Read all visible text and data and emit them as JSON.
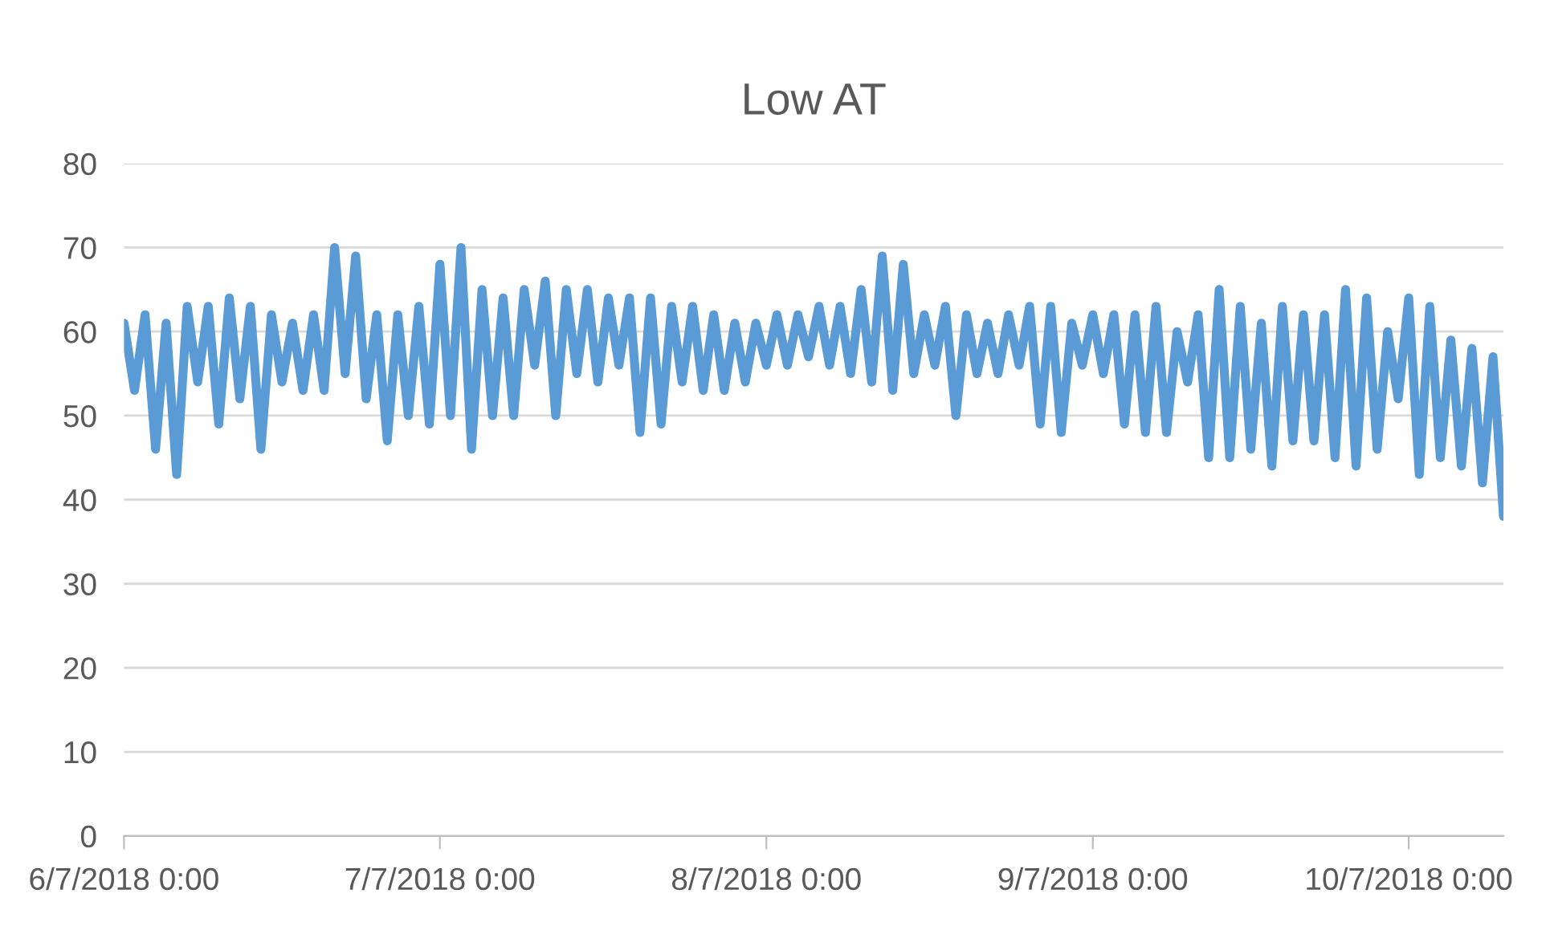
{
  "chart_data": {
    "type": "line",
    "title": "Low AT",
    "x": [
      "2018-06-07",
      "2018-06-08",
      "2018-06-09",
      "2018-06-10",
      "2018-06-11",
      "2018-06-12",
      "2018-06-13",
      "2018-06-14",
      "2018-06-15",
      "2018-06-16",
      "2018-06-17",
      "2018-06-18",
      "2018-06-19",
      "2018-06-20",
      "2018-06-21",
      "2018-06-22",
      "2018-06-23",
      "2018-06-24",
      "2018-06-25",
      "2018-06-26",
      "2018-06-27",
      "2018-06-28",
      "2018-06-29",
      "2018-06-30",
      "2018-07-01",
      "2018-07-02",
      "2018-07-03",
      "2018-07-04",
      "2018-07-05",
      "2018-07-06",
      "2018-07-07",
      "2018-07-08",
      "2018-07-09",
      "2018-07-10",
      "2018-07-11",
      "2018-07-12",
      "2018-07-13",
      "2018-07-14",
      "2018-07-15",
      "2018-07-16",
      "2018-07-17",
      "2018-07-18",
      "2018-07-19",
      "2018-07-20",
      "2018-07-21",
      "2018-07-22",
      "2018-07-23",
      "2018-07-24",
      "2018-07-25",
      "2018-07-26",
      "2018-07-27",
      "2018-07-28",
      "2018-07-29",
      "2018-07-30",
      "2018-07-31",
      "2018-08-01",
      "2018-08-02",
      "2018-08-03",
      "2018-08-04",
      "2018-08-05",
      "2018-08-06",
      "2018-08-07",
      "2018-08-08",
      "2018-08-09",
      "2018-08-10",
      "2018-08-11",
      "2018-08-12",
      "2018-08-13",
      "2018-08-14",
      "2018-08-15",
      "2018-08-16",
      "2018-08-17",
      "2018-08-18",
      "2018-08-19",
      "2018-08-20",
      "2018-08-21",
      "2018-08-22",
      "2018-08-23",
      "2018-08-24",
      "2018-08-25",
      "2018-08-26",
      "2018-08-27",
      "2018-08-28",
      "2018-08-29",
      "2018-08-30",
      "2018-08-31",
      "2018-09-01",
      "2018-09-02",
      "2018-09-03",
      "2018-09-04",
      "2018-09-05",
      "2018-09-06",
      "2018-09-07",
      "2018-09-08",
      "2018-09-09",
      "2018-09-10",
      "2018-09-11",
      "2018-09-12",
      "2018-09-13",
      "2018-09-14",
      "2018-09-15",
      "2018-09-16",
      "2018-09-17",
      "2018-09-18",
      "2018-09-19",
      "2018-09-20",
      "2018-09-21",
      "2018-09-22",
      "2018-09-23",
      "2018-09-24",
      "2018-09-25",
      "2018-09-26",
      "2018-09-27",
      "2018-09-28",
      "2018-09-29",
      "2018-09-30",
      "2018-10-01",
      "2018-10-02",
      "2018-10-03",
      "2018-10-04",
      "2018-10-05",
      "2018-10-06",
      "2018-10-07",
      "2018-10-08",
      "2018-10-09",
      "2018-10-10",
      "2018-10-11",
      "2018-10-12",
      "2018-10-13",
      "2018-10-14",
      "2018-10-15",
      "2018-10-16"
    ],
    "series": [
      {
        "color": "#5b9bd5",
        "values": [
          61,
          53,
          62,
          46,
          61,
          43,
          63,
          54,
          63,
          49,
          64,
          52,
          63,
          46,
          62,
          54,
          61,
          53,
          62,
          53,
          70,
          55,
          69,
          52,
          62,
          47,
          62,
          50,
          63,
          49,
          68,
          50,
          70,
          46,
          65,
          50,
          64,
          50,
          65,
          56,
          66,
          50,
          65,
          55,
          65,
          54,
          64,
          56,
          64,
          48,
          64,
          49,
          63,
          54,
          63,
          53,
          62,
          53,
          61,
          54,
          61,
          56,
          62,
          56,
          62,
          57,
          63,
          56,
          63,
          55,
          65,
          54,
          69,
          53,
          68,
          55,
          62,
          56,
          63,
          50,
          62,
          55,
          61,
          55,
          62,
          56,
          63,
          49,
          63,
          48,
          61,
          56,
          62,
          55,
          62,
          49,
          62,
          48,
          63,
          48,
          60,
          54,
          62,
          45,
          65,
          45,
          63,
          46,
          61,
          44,
          63,
          47,
          62,
          47,
          62,
          45,
          65,
          44,
          64,
          46,
          60,
          52,
          64,
          43,
          63,
          45,
          59,
          44,
          58,
          42,
          57,
          38
        ]
      }
    ],
    "xlim": [
      "2018-06-07",
      "2018-10-16"
    ],
    "xticks": [
      {
        "value": "2018-06-07",
        "label": "6/7/2018 0:00"
      },
      {
        "value": "2018-07-07",
        "label": "7/7/2018 0:00"
      },
      {
        "value": "2018-08-07",
        "label": "8/7/2018 0:00"
      },
      {
        "value": "2018-09-07",
        "label": "9/7/2018 0:00"
      },
      {
        "value": "2018-10-07",
        "label": "10/7/2018 0:00"
      }
    ],
    "ylim": [
      0,
      80
    ],
    "yticks": [
      0,
      10,
      20,
      30,
      40,
      50,
      60,
      70,
      80
    ],
    "grid": "y",
    "legend": false,
    "marker": "none",
    "line_style": "solid"
  }
}
